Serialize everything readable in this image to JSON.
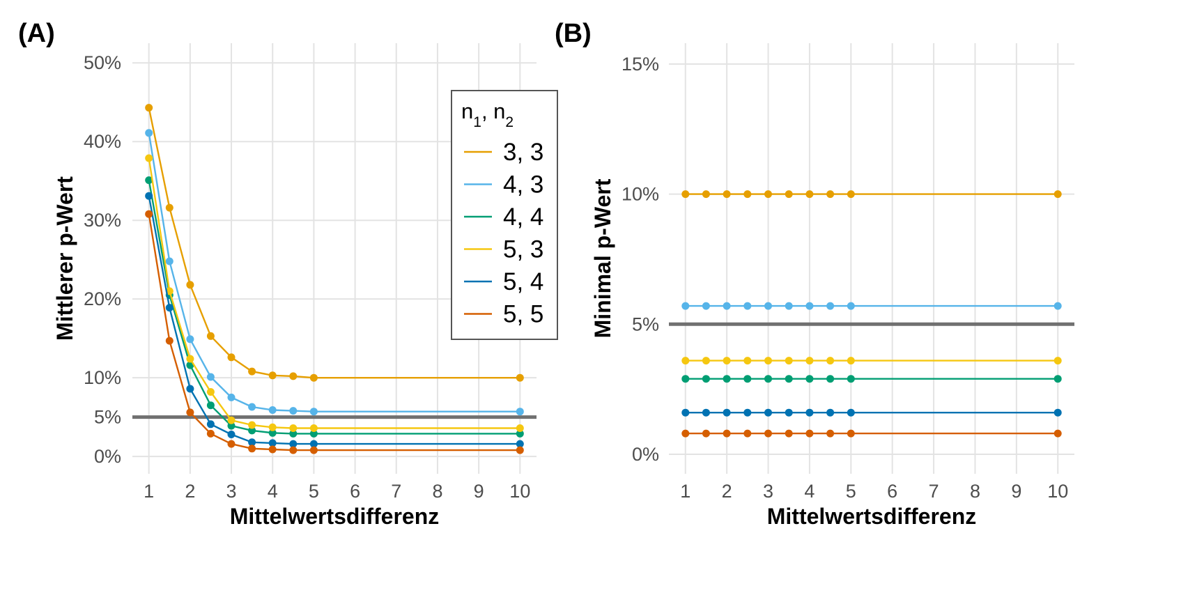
{
  "chart_data": [
    {
      "type": "line",
      "panel_label": "(A)",
      "xlabel": "Mittelwertsdifferenz",
      "ylabel": "Mittlerer p-Wert",
      "x_ticks": [
        "1",
        "2",
        "3",
        "4",
        "5",
        "6",
        "7",
        "8",
        "9",
        "10"
      ],
      "y_ticks": [
        {
          "value": 0,
          "label": "0%"
        },
        {
          "value": 5,
          "label": "5%"
        },
        {
          "value": 10,
          "label": "10%"
        },
        {
          "value": 20,
          "label": "20%"
        },
        {
          "value": 30,
          "label": "30%"
        },
        {
          "value": 40,
          "label": "40%"
        },
        {
          "value": 50,
          "label": "50%"
        }
      ],
      "xlim": [
        0.6,
        10.4
      ],
      "ylim": [
        -2.2,
        52.5
      ],
      "reference_line": 5,
      "grid": true,
      "legend": {
        "title_base": "n",
        "title_sub1": "1",
        "title_sep": ", n",
        "title_sub2": "2",
        "placement": "top-right"
      },
      "x": [
        1,
        1.5,
        2,
        2.5,
        3,
        3.5,
        4,
        4.5,
        5,
        10
      ],
      "series": [
        {
          "name": "3, 3",
          "color": "#E69F00",
          "values": [
            44.3,
            31.6,
            21.8,
            15.3,
            12.6,
            10.8,
            10.3,
            10.2,
            10.0,
            10.0
          ]
        },
        {
          "name": "4, 3",
          "color": "#56B4E9",
          "values": [
            41.1,
            24.8,
            14.9,
            10.1,
            7.5,
            6.3,
            5.9,
            5.8,
            5.7,
            5.7
          ]
        },
        {
          "name": "4, 4",
          "color": "#009E73",
          "values": [
            35.1,
            20.5,
            11.6,
            6.5,
            3.9,
            3.3,
            3.0,
            2.9,
            2.9,
            2.9
          ]
        },
        {
          "name": "5, 3",
          "color": "#F5C710",
          "values": [
            37.9,
            21.0,
            12.4,
            8.2,
            4.6,
            4.0,
            3.7,
            3.6,
            3.6,
            3.6
          ]
        },
        {
          "name": "5, 4",
          "color": "#0072B2",
          "values": [
            33.1,
            18.9,
            8.6,
            4.1,
            2.8,
            1.8,
            1.7,
            1.6,
            1.6,
            1.6
          ]
        },
        {
          "name": "5, 5",
          "color": "#D55E00",
          "values": [
            30.8,
            14.7,
            5.6,
            2.9,
            1.6,
            1.0,
            0.9,
            0.8,
            0.8,
            0.8
          ]
        }
      ]
    },
    {
      "type": "line",
      "panel_label": "(B)",
      "xlabel": "Mittelwertsdifferenz",
      "ylabel": "Minimal p-Wert",
      "x_ticks": [
        "1",
        "2",
        "3",
        "4",
        "5",
        "6",
        "7",
        "8",
        "9",
        "10"
      ],
      "y_ticks": [
        {
          "value": 0,
          "label": "0%"
        },
        {
          "value": 5,
          "label": "5%"
        },
        {
          "value": 10,
          "label": "10%"
        },
        {
          "value": 15,
          "label": "15%"
        }
      ],
      "xlim": [
        0.6,
        10.4
      ],
      "ylim": [
        -0.75,
        15.8
      ],
      "reference_line": 5,
      "grid": true,
      "x": [
        1,
        1.5,
        2,
        2.5,
        3,
        3.5,
        4,
        4.5,
        5,
        10
      ],
      "series": [
        {
          "name": "3, 3",
          "color": "#E69F00",
          "values": [
            10.0,
            10.0,
            10.0,
            10.0,
            10.0,
            10.0,
            10.0,
            10.0,
            10.0,
            10.0
          ]
        },
        {
          "name": "4, 3",
          "color": "#56B4E9",
          "values": [
            5.7,
            5.7,
            5.7,
            5.7,
            5.7,
            5.7,
            5.7,
            5.7,
            5.7,
            5.7
          ]
        },
        {
          "name": "4, 4",
          "color": "#009E73",
          "values": [
            2.9,
            2.9,
            2.9,
            2.9,
            2.9,
            2.9,
            2.9,
            2.9,
            2.9,
            2.9
          ]
        },
        {
          "name": "5, 3",
          "color": "#F5C710",
          "values": [
            3.6,
            3.6,
            3.6,
            3.6,
            3.6,
            3.6,
            3.6,
            3.6,
            3.6,
            3.6
          ]
        },
        {
          "name": "5, 4",
          "color": "#0072B2",
          "values": [
            1.6,
            1.6,
            1.6,
            1.6,
            1.6,
            1.6,
            1.6,
            1.6,
            1.6,
            1.6
          ]
        },
        {
          "name": "5, 5",
          "color": "#D55E00",
          "values": [
            0.8,
            0.8,
            0.8,
            0.8,
            0.8,
            0.8,
            0.8,
            0.8,
            0.8,
            0.8
          ]
        }
      ]
    }
  ]
}
